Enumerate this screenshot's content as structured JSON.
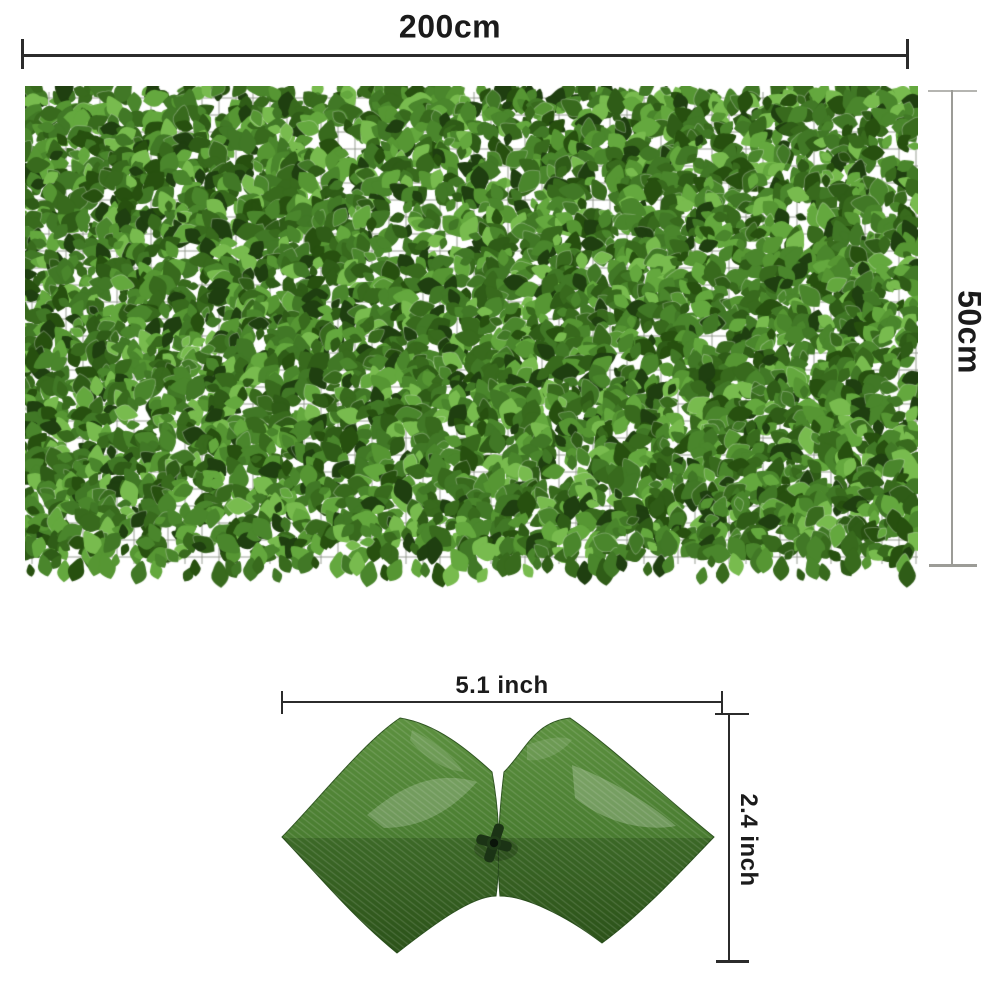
{
  "panel": {
    "width_label": "200cm",
    "height_label": "50cm"
  },
  "leaf": {
    "width_label": "5.1 inch",
    "height_label": "2.4 inch"
  },
  "colors": {
    "background": "#ffffff",
    "dimension_dark": "#2b2b2b",
    "dimension_gray": "#9c9c97",
    "label_text": "#1b1b1b",
    "mesh_grid": "#8a8f82",
    "hedge_palette": [
      "#1f3f10",
      "#27500f",
      "#2f5c17",
      "#386a1d",
      "#417826",
      "#4a862c",
      "#417826",
      "#386a1d",
      "#569633",
      "#64a83e",
      "#78bb4e",
      "#4a862c"
    ],
    "leaf_light": "#5d9140",
    "leaf_mid": "#4a7d31",
    "leaf_dark": "#35601f",
    "clip_color": "#1b3315"
  }
}
